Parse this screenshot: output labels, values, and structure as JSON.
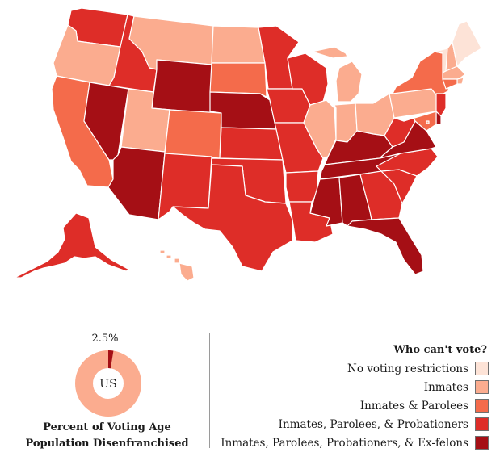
{
  "categories": [
    {
      "label": "No voting restrictions",
      "color": "#fde3d7"
    },
    {
      "label": "Inmates",
      "color": "#fbac8f"
    },
    {
      "label": "Inmates & Parolees",
      "color": "#f46b4b"
    },
    {
      "label": "Inmates, Parolees, & Probationers",
      "color": "#de2d28"
    },
    {
      "label": "Inmates, Parolees, Probationers, & Ex-felons",
      "color": "#a50f15"
    }
  ],
  "legend": {
    "title": "Who can't vote?"
  },
  "us_summary": {
    "label": "US",
    "percent_text": "2.5%",
    "percent": 2.5,
    "caption_line1": "Percent of Voting Age",
    "caption_line2": "Population Disenfranchised"
  },
  "states": {
    "WA": 3,
    "OR": 1,
    "CA": 2,
    "NV": 4,
    "ID": 3,
    "MT": 1,
    "WY": 4,
    "UT": 1,
    "AZ": 4,
    "CO": 2,
    "NM": 3,
    "ND": 1,
    "SD": 2,
    "NE": 4,
    "KS": 3,
    "OK": 3,
    "TX": 3,
    "MN": 3,
    "IA": 3,
    "MO": 3,
    "AR": 3,
    "LA": 3,
    "WI": 3,
    "IL": 1,
    "MI": 1,
    "IN": 1,
    "OH": 1,
    "KY": 4,
    "TN": 4,
    "MS": 4,
    "AL": 4,
    "GA": 3,
    "FL": 4,
    "SC": 3,
    "NC": 3,
    "VA": 4,
    "WV": 3,
    "PA": 1,
    "NY": 2,
    "VT": 0,
    "ME": 0,
    "NH": 1,
    "MA": 1,
    "CT": 2,
    "RI": 1,
    "NJ": 3,
    "DE": 4,
    "MD": 2,
    "DC": 1,
    "AK": 3,
    "HI": 1
  }
}
